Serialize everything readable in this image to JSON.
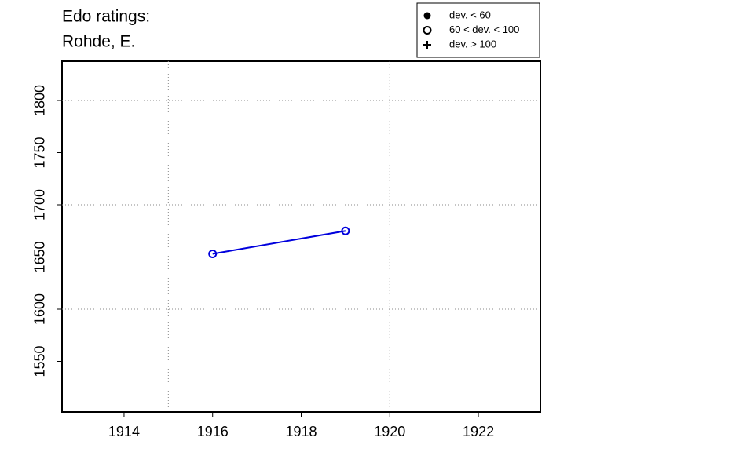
{
  "chart_data": {
    "type": "line",
    "title": [
      "Edo ratings:",
      "Rohde, E."
    ],
    "x": [
      1916,
      1919
    ],
    "values": [
      1653,
      1675
    ],
    "color": "#0000dd",
    "marker": "open-circle",
    "xlim": [
      1912.6,
      1923.4
    ],
    "ylim": [
      1501.5,
      1837.6
    ],
    "xticks": [
      1914,
      1916,
      1918,
      1920,
      1922
    ],
    "yticks": [
      1550,
      1600,
      1650,
      1700,
      1750,
      1800
    ],
    "grid_x": [
      1915,
      1920
    ],
    "grid_y": [
      1600,
      1700,
      1800
    ],
    "legend": [
      {
        "label": "dev. < 60",
        "marker": "filled-circle"
      },
      {
        "label": "60 < dev. < 100",
        "marker": "open-circle"
      },
      {
        "label": "dev. > 100",
        "marker": "plus"
      }
    ]
  }
}
